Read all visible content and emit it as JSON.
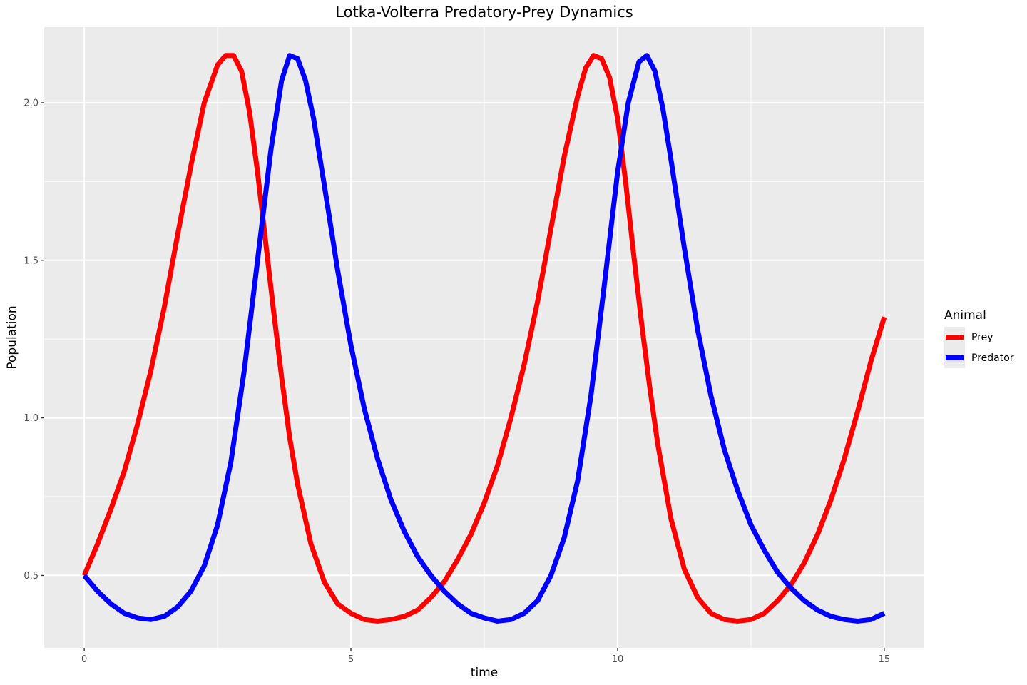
{
  "chart_data": {
    "type": "line",
    "title": "Lotka-Volterra Predatory-Prey Dynamics",
    "xlabel": "time",
    "ylabel": "Population",
    "xlim": [
      -0.75,
      15.75
    ],
    "ylim": [
      0.27,
      2.24
    ],
    "x_ticks": [
      0,
      5,
      10,
      15
    ],
    "x_tick_labels": [
      "0",
      "5",
      "10",
      "15"
    ],
    "y_ticks": [
      0.5,
      1.0,
      1.5,
      2.0
    ],
    "y_tick_labels": [
      "0.5",
      "1.0",
      "1.5",
      "2.0"
    ],
    "grid": true,
    "legend": {
      "title": "Animal",
      "position": "right",
      "entries": [
        "Prey",
        "Predator"
      ]
    },
    "series": [
      {
        "name": "Prey",
        "color": "#FF0000",
        "x": [
          0,
          0.25,
          0.5,
          0.75,
          1.0,
          1.25,
          1.5,
          1.75,
          2.0,
          2.25,
          2.5,
          2.65,
          2.8,
          2.95,
          3.1,
          3.25,
          3.4,
          3.55,
          3.7,
          3.85,
          4.0,
          4.25,
          4.5,
          4.75,
          5.0,
          5.25,
          5.5,
          5.75,
          6.0,
          6.25,
          6.5,
          6.75,
          7.0,
          7.25,
          7.5,
          7.75,
          8.0,
          8.25,
          8.5,
          8.75,
          9.0,
          9.25,
          9.4,
          9.55,
          9.7,
          9.85,
          10.0,
          10.15,
          10.3,
          10.45,
          10.6,
          10.75,
          11.0,
          11.25,
          11.5,
          11.75,
          12.0,
          12.25,
          12.5,
          12.75,
          13.0,
          13.25,
          13.5,
          13.75,
          14.0,
          14.25,
          14.5,
          14.75,
          15.0
        ],
        "y": [
          0.5,
          0.6,
          0.71,
          0.83,
          0.98,
          1.15,
          1.35,
          1.58,
          1.8,
          2.0,
          2.12,
          2.15,
          2.15,
          2.1,
          1.97,
          1.78,
          1.56,
          1.34,
          1.13,
          0.94,
          0.79,
          0.6,
          0.48,
          0.41,
          0.38,
          0.36,
          0.355,
          0.36,
          0.37,
          0.39,
          0.43,
          0.48,
          0.55,
          0.63,
          0.73,
          0.85,
          1.0,
          1.17,
          1.37,
          1.6,
          1.83,
          2.02,
          2.11,
          2.15,
          2.14,
          2.08,
          1.95,
          1.75,
          1.52,
          1.3,
          1.1,
          0.92,
          0.68,
          0.52,
          0.43,
          0.38,
          0.36,
          0.355,
          0.36,
          0.38,
          0.42,
          0.47,
          0.54,
          0.63,
          0.74,
          0.87,
          1.02,
          1.18,
          1.32
        ]
      },
      {
        "name": "Predator",
        "color": "#0000FF",
        "x": [
          0,
          0.25,
          0.5,
          0.75,
          1.0,
          1.25,
          1.5,
          1.75,
          2.0,
          2.25,
          2.5,
          2.75,
          3.0,
          3.25,
          3.5,
          3.7,
          3.85,
          4.0,
          4.15,
          4.3,
          4.5,
          4.75,
          5.0,
          5.25,
          5.5,
          5.75,
          6.0,
          6.25,
          6.5,
          6.75,
          7.0,
          7.25,
          7.5,
          7.75,
          8.0,
          8.25,
          8.5,
          8.75,
          9.0,
          9.25,
          9.5,
          9.75,
          10.0,
          10.2,
          10.4,
          10.55,
          10.7,
          10.85,
          11.0,
          11.25,
          11.5,
          11.75,
          12.0,
          12.25,
          12.5,
          12.75,
          13.0,
          13.25,
          13.5,
          13.75,
          14.0,
          14.25,
          14.5,
          14.75,
          15.0
        ],
        "y": [
          0.5,
          0.45,
          0.41,
          0.38,
          0.365,
          0.36,
          0.37,
          0.4,
          0.45,
          0.53,
          0.66,
          0.86,
          1.15,
          1.5,
          1.85,
          2.07,
          2.15,
          2.14,
          2.07,
          1.95,
          1.74,
          1.47,
          1.23,
          1.03,
          0.87,
          0.74,
          0.64,
          0.56,
          0.5,
          0.45,
          0.41,
          0.38,
          0.365,
          0.355,
          0.36,
          0.38,
          0.42,
          0.5,
          0.62,
          0.8,
          1.07,
          1.42,
          1.78,
          2.0,
          2.13,
          2.15,
          2.1,
          1.98,
          1.82,
          1.54,
          1.28,
          1.07,
          0.9,
          0.77,
          0.66,
          0.58,
          0.51,
          0.46,
          0.42,
          0.39,
          0.37,
          0.36,
          0.355,
          0.36,
          0.38
        ]
      }
    ]
  }
}
